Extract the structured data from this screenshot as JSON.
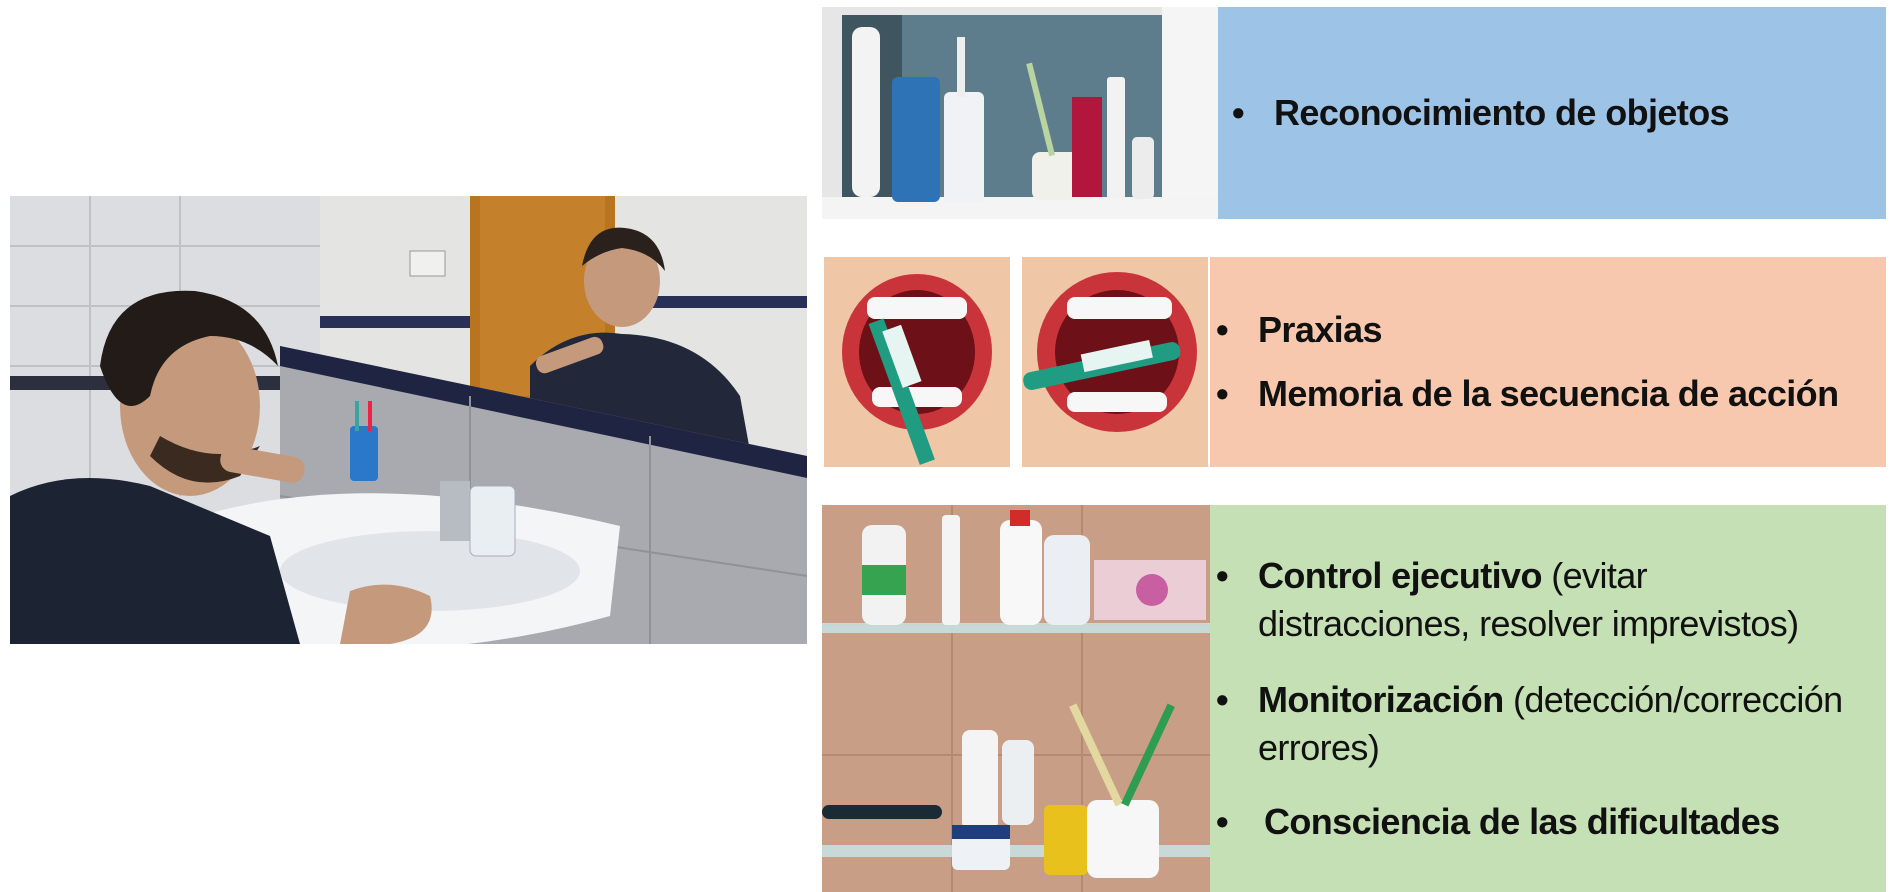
{
  "panels": {
    "objects": {
      "items": [
        {
          "bold": "Reconocimiento de objetos",
          "rest": ""
        }
      ]
    },
    "praxias": {
      "items": [
        {
          "bold": "Praxias",
          "rest": ""
        },
        {
          "bold": "Memoria de la secuencia de acción",
          "rest": ""
        }
      ]
    },
    "executive": {
      "items": [
        {
          "bold": "Control ejecutivo",
          "rest": " (evitar distracciones, resolver imprevistos)"
        },
        {
          "bold": "Monitorización",
          "rest": " (detección/corrección errores)"
        },
        {
          "bold": "Consciencia de las dificultades",
          "rest": ""
        }
      ]
    }
  },
  "colors": {
    "blue_panel": "#9dc3e6",
    "peach_panel": "#f7c8ad",
    "green_panel": "#c5e0b4"
  }
}
